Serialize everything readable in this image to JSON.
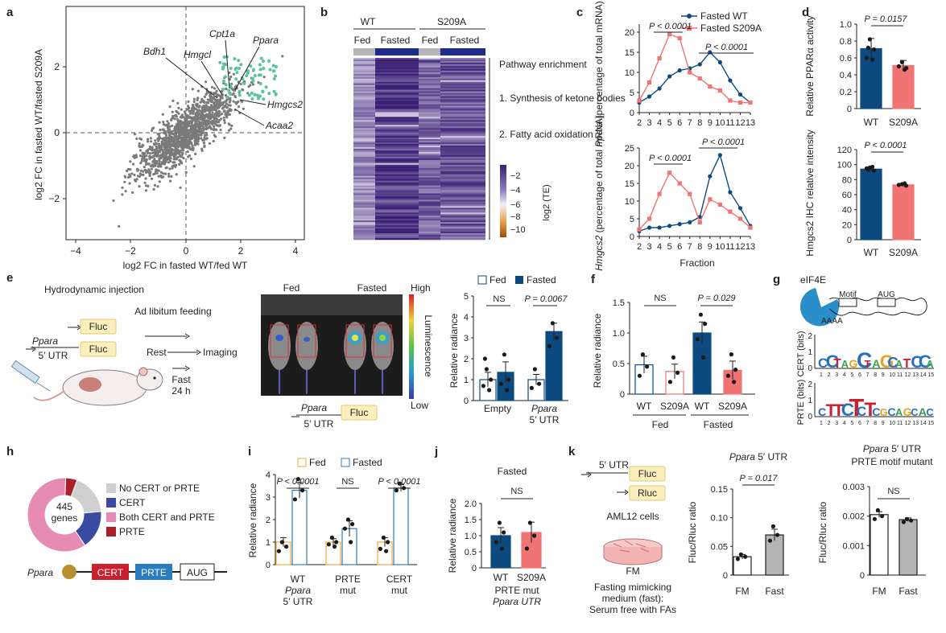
{
  "panel_labels": [
    "a",
    "b",
    "c",
    "d",
    "e",
    "f",
    "g",
    "h",
    "i",
    "j",
    "k"
  ],
  "colors": {
    "wt": "#0d4a80",
    "s209a": "#f07474",
    "scatter": "#7a7a7a",
    "highlight": "#5cc39b",
    "fed_open": "#f2a93b",
    "fasted_open": "#2f7fbf",
    "grey_bar": "#b5b5b5",
    "cert": "#c8202f",
    "prte": "#2a7cc0",
    "both": "#e58bb4",
    "none": "#cfcfcf",
    "heat_high": "#3a1e74",
    "heat_low": "#e0a040"
  },
  "a": {
    "xlabel": "log2 FC in fasted WT/fed WT",
    "ylabel": "log2 FC in fasted WT/fasted S209A",
    "xticks": [
      "−4",
      "−2",
      "0",
      "2",
      "4"
    ],
    "yticks": [
      "2",
      "0",
      "−2"
    ],
    "genes": [
      "Bdh1",
      "Hmgcl",
      "Cpt1a",
      "Ppara",
      "Hmgcs2",
      "Acaa2"
    ]
  },
  "b": {
    "groups": [
      "WT",
      "S209A"
    ],
    "conditions": [
      "Fed",
      "Fasted",
      "Fed",
      "Fasted"
    ],
    "pathway_title": "Pathway enrichment",
    "pathway_1": "1. Synthesis of ketone bodies",
    "pathway_2": "2. Fatty acid oxidation",
    "colorbar_ticks": [
      "−2",
      "−4",
      "−6",
      "−8",
      "−10"
    ],
    "colorbar_label": "log2 (TE)"
  },
  "c": {
    "legend": [
      "Fasted WT",
      "Fasted S209A"
    ],
    "top_ylabel_gene": "Ppara",
    "top_ylabel_rest": "(percentage of total mRNA)",
    "bottom_ylabel_gene": "Hmgcs2",
    "bottom_ylabel_rest": "(percentage of total mRNA)",
    "xlabel": "Fraction",
    "xticks": [
      "2",
      "3",
      "4",
      "5",
      "6",
      "7",
      "8",
      "9",
      "10",
      "11",
      "12",
      "13"
    ],
    "p_top_left": "P < 0.0001",
    "p_top_right": "P < 0.0001",
    "p_bot_left": "P < 0.0001",
    "p_bot_right": "P < 0.0001"
  },
  "d": {
    "top_ylabel": "Relative PPARα activity",
    "top_yticks": [
      "0",
      "0.2",
      "0.4",
      "0.6",
      "0.8",
      "1.0"
    ],
    "top_p": "P = 0.0157",
    "bottom_ylabel": "Hmgcs2 IHC relative intensity",
    "bottom_yticks": [
      "0",
      "20",
      "40",
      "60",
      "80",
      "100",
      "120"
    ],
    "bottom_p": "P < 0.0001",
    "xticks": [
      "WT",
      "S209A"
    ]
  },
  "e": {
    "hydro": "Hydrodynamic injection",
    "fluc": "Fluc",
    "ppara": "Ppara",
    "utr": "5′ UTR",
    "adlib": "Ad libitum feeding",
    "rest": "Rest",
    "fast": "Fast",
    "fast_time": "24 h",
    "imaging": "Imaging",
    "photo_fed": "Fed",
    "photo_fasted": "Fasted",
    "lum_high": "High",
    "lum_low": "Low",
    "lum_label": "Luminescence",
    "legend": [
      "Fed",
      "Fasted"
    ],
    "ylabel": "Relative radiance",
    "yticks": [
      "0",
      "1",
      "2",
      "3",
      "4",
      "5"
    ],
    "p_ns": "NS",
    "p_sig": "P = 0.0067",
    "x1": "Empty",
    "x2_gene": "Ppara",
    "x2_rest": "5′ UTR"
  },
  "f": {
    "ylabel": "Relative radiance",
    "yticks": [
      "0",
      "0.5",
      "1.0",
      "1.5"
    ],
    "p_ns": "NS",
    "p_sig": "P = 0.029",
    "xticks": [
      "WT",
      "S209A",
      "WT",
      "S209A"
    ],
    "groups": [
      "Fed",
      "Fasted"
    ]
  },
  "g": {
    "protein": "eIF4E",
    "motif": "Motif",
    "aug": "AUG",
    "polyA": "AAAA",
    "cert_label": "CERT (bits)",
    "prte_label": "PRTE (bits)",
    "yticks": [
      "0",
      "1",
      "2"
    ],
    "positions": [
      "1",
      "2",
      "3",
      "4",
      "5",
      "6",
      "7",
      "8",
      "9",
      "10",
      "11",
      "12",
      "13",
      "14",
      "15"
    ]
  },
  "h": {
    "center_count": "445",
    "center_label": "genes",
    "legend": [
      "No CERT or PRTE",
      "CERT",
      "Both CERT and PRTE",
      "PRTE"
    ],
    "gene": "Ppara",
    "cert": "CERT",
    "prte": "PRTE",
    "aug": "AUG"
  },
  "i": {
    "legend": [
      "Fed",
      "Fasted"
    ],
    "ylabel": "Relative radiance",
    "yticks": [
      "0",
      "1",
      "2",
      "3",
      "4"
    ],
    "p1": "P < 0.0001",
    "p2": "NS",
    "p3": "P < 0.0001",
    "x1a": "WT",
    "x1b": "Ppara",
    "x1c": "5′ UTR",
    "x2a": "PRTE",
    "x2b": "mut",
    "x3a": "CERT",
    "x3b": "mut"
  },
  "j": {
    "title": "Fasted",
    "ylabel": "Relative radiance",
    "yticks": [
      "0",
      "0.5",
      "1.0",
      "1.5",
      "2.0"
    ],
    "p": "NS",
    "xticks": [
      "WT",
      "S209A"
    ],
    "x_caption1": "PRTE mut",
    "x_caption2": "Ppara UTR"
  },
  "k": {
    "utr": "5′ UTR",
    "fluc": "Fluc",
    "rluc": "Rluc",
    "cells": "AML12 cells",
    "fm": "FM",
    "medium1": "Fasting mimicking",
    "medium2": "medium (fast):",
    "medium3": "Serum free with FAs",
    "title1_gene": "Ppara",
    "title1_rest": "5′ UTR",
    "p1": "P = 0.017",
    "ylabel": "Fluc/Rluc ratio",
    "y1ticks": [
      "0",
      "0.05",
      "0.10",
      "0.15"
    ],
    "title2_gene": "Ppara",
    "title2_rest": "5′ UTR",
    "title2_line2": "PRTE motif mutant",
    "p2": "NS",
    "y2ticks": [
      "0",
      "0.001",
      "0.002",
      "0.003"
    ],
    "xticks": [
      "FM",
      "Fast"
    ]
  },
  "chart_data": [
    {
      "panel": "c-top",
      "type": "line",
      "title": "Ppara",
      "x": [
        2,
        3,
        4,
        5,
        6,
        7,
        8,
        9,
        10,
        11,
        12,
        13
      ],
      "series": [
        {
          "name": "Fasted WT",
          "values": [
            2.5,
            4,
            6,
            9,
            10.5,
            11,
            12,
            15,
            12.5,
            8,
            4.5,
            2.5
          ]
        },
        {
          "name": "Fasted S209A",
          "values": [
            3,
            7.5,
            13.5,
            19.5,
            18.5,
            10,
            8.5,
            6.5,
            5.5,
            3,
            2.5,
            2.5
          ]
        }
      ],
      "ylim": [
        0,
        22
      ]
    },
    {
      "panel": "c-bottom",
      "type": "line",
      "title": "Hmgcs2",
      "x": [
        2,
        3,
        4,
        5,
        6,
        7,
        8,
        9,
        10,
        11,
        12,
        13
      ],
      "series": [
        {
          "name": "Fasted WT",
          "values": [
            1.5,
            2.5,
            2.5,
            3,
            3.5,
            4,
            5.5,
            17,
            23,
            12.5,
            8,
            3
          ]
        },
        {
          "name": "Fasted S209A",
          "values": [
            2,
            5,
            12,
            18,
            15,
            12,
            4,
            10.5,
            9,
            7,
            5,
            2.5
          ]
        }
      ],
      "ylim": [
        0,
        25
      ]
    },
    {
      "panel": "d-top",
      "type": "bar",
      "categories": [
        "WT",
        "S209A"
      ],
      "values": [
        0.71,
        0.51
      ],
      "ylim": [
        0,
        1.0
      ]
    },
    {
      "panel": "d-bottom",
      "type": "bar",
      "categories": [
        "WT",
        "S209A"
      ],
      "values": [
        94,
        73
      ],
      "ylim": [
        0,
        120
      ]
    },
    {
      "panel": "e",
      "type": "bar",
      "categories": [
        "Empty",
        "Ppara 5′ UTR"
      ],
      "series": [
        {
          "name": "Fed",
          "values": [
            1.0,
            1.0
          ]
        },
        {
          "name": "Fasted",
          "values": [
            1.35,
            3.3
          ]
        }
      ],
      "ylim": [
        0,
        5
      ]
    },
    {
      "panel": "f",
      "type": "bar",
      "categories": [
        "Fed WT",
        "Fed S209A",
        "Fasted WT",
        "Fasted S209A"
      ],
      "values": [
        0.48,
        0.37,
        1.0,
        0.39
      ],
      "ylim": [
        0,
        1.5
      ]
    },
    {
      "panel": "h",
      "type": "pie",
      "categories": [
        "No CERT or PRTE",
        "CERT",
        "Both CERT and PRTE",
        "PRTE"
      ],
      "values": [
        18,
        17,
        60,
        5
      ]
    },
    {
      "panel": "i",
      "type": "bar",
      "categories": [
        "WT Ppara 5′ UTR",
        "PRTE mut",
        "CERT mut"
      ],
      "series": [
        {
          "name": "Fed",
          "values": [
            1.0,
            1.0,
            1.0
          ]
        },
        {
          "name": "Fasted",
          "values": [
            3.3,
            1.6,
            3.4
          ]
        }
      ],
      "ylim": [
        0,
        4
      ]
    },
    {
      "panel": "j",
      "type": "bar",
      "categories": [
        "WT",
        "S209A"
      ],
      "values": [
        1.0,
        1.1
      ],
      "ylim": [
        0,
        2.0
      ]
    },
    {
      "panel": "k-left",
      "type": "bar",
      "categories": [
        "FM",
        "Fast"
      ],
      "values": [
        0.032,
        0.07
      ],
      "ylim": [
        0,
        0.15
      ]
    },
    {
      "panel": "k-right",
      "type": "bar",
      "categories": [
        "FM",
        "Fast"
      ],
      "values": [
        0.00205,
        0.00188
      ],
      "ylim": [
        0,
        0.003
      ]
    }
  ]
}
